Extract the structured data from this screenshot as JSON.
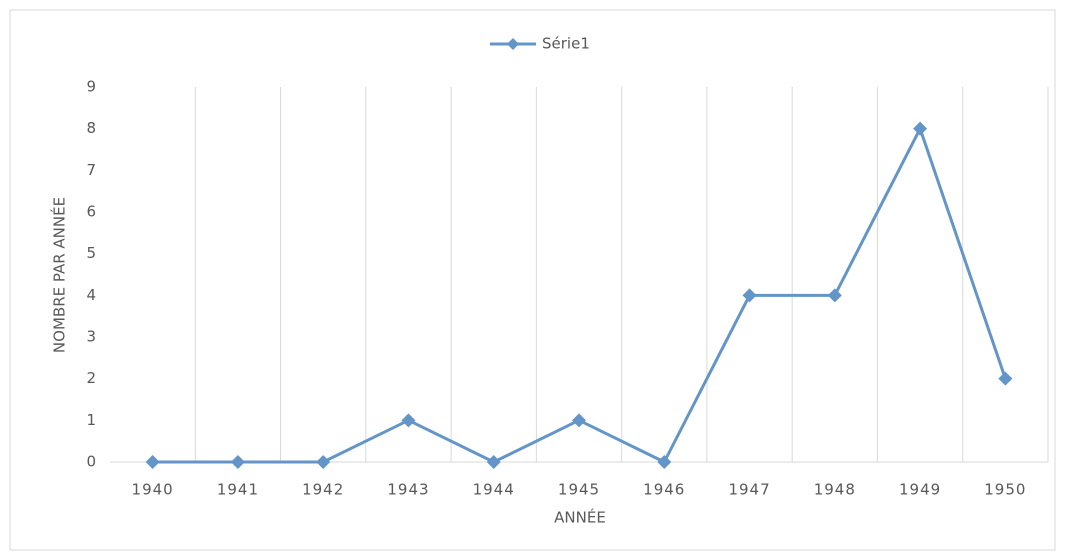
{
  "chart_data": {
    "type": "line",
    "title": null,
    "x_label": "ANNÉE",
    "y_label": "NOMBRE PAR ANNÉE",
    "categories": [
      "1940",
      "1941",
      "1942",
      "1943",
      "1944",
      "1945",
      "1946",
      "1947",
      "1948",
      "1949",
      "1950"
    ],
    "series": [
      {
        "name": "Série1",
        "color": "#6495c8",
        "values": [
          0,
          0,
          0,
          1,
          0,
          1,
          0,
          4,
          4,
          8,
          2
        ]
      }
    ],
    "ylim": [
      0,
      9
    ],
    "yticks": [
      0,
      1,
      2,
      3,
      4,
      5,
      6,
      7,
      8,
      9
    ],
    "grid": true,
    "legend": "top"
  }
}
